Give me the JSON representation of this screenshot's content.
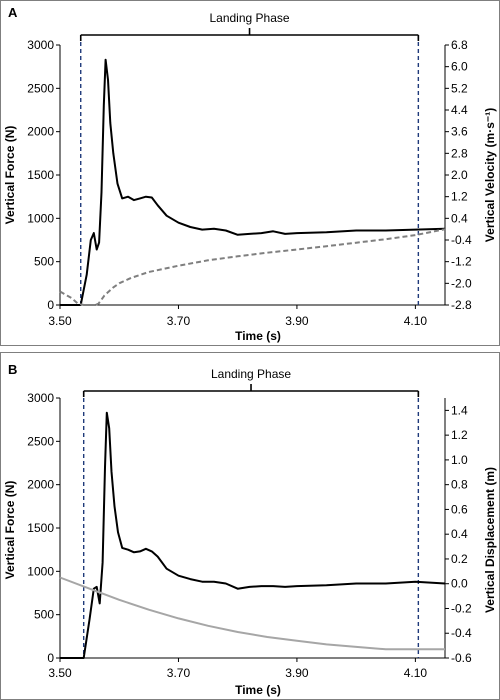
{
  "chart_data": [
    {
      "panel_label": "A",
      "type": "line",
      "phase_label": "Landing Phase",
      "phase_start": 3.535,
      "phase_end": 4.105,
      "xlabel": "Time (s)",
      "xlim": [
        3.5,
        4.15
      ],
      "xticks": [
        "3.50",
        "3.70",
        "3.90",
        "4.10"
      ],
      "y_left": {
        "label": "Vertical Force (N)",
        "lim": [
          0,
          3000
        ],
        "ticks": [
          "0",
          "500",
          "1000",
          "1500",
          "2000",
          "2500",
          "3000"
        ]
      },
      "y_right": {
        "label": "Vertical Velocity (m·s⁻¹)",
        "lim": [
          -2.8,
          6.8
        ],
        "ticks": [
          "6.8",
          "6.0",
          "5.2",
          "4.4",
          "3.6",
          "2.8",
          "2.0",
          "1.2",
          "0.4",
          "-0.4",
          "-1.2",
          "-2.0",
          "-2.8"
        ]
      },
      "series": [
        {
          "axis": "left",
          "style": "solid-black",
          "x": [
            3.5,
            3.535,
            3.545,
            3.552,
            3.557,
            3.562,
            3.566,
            3.57,
            3.574,
            3.577,
            3.581,
            3.585,
            3.59,
            3.597,
            3.605,
            3.615,
            3.625,
            3.635,
            3.645,
            3.655,
            3.665,
            3.68,
            3.7,
            3.72,
            3.74,
            3.76,
            3.78,
            3.8,
            3.82,
            3.84,
            3.86,
            3.88,
            3.9,
            3.95,
            4.0,
            4.05,
            4.1,
            4.15
          ],
          "y": [
            0,
            0,
            350,
            750,
            830,
            640,
            720,
            1300,
            2300,
            2830,
            2600,
            2100,
            1750,
            1400,
            1230,
            1250,
            1210,
            1230,
            1250,
            1240,
            1150,
            1030,
            950,
            900,
            870,
            880,
            860,
            810,
            820,
            830,
            850,
            820,
            830,
            840,
            860,
            860,
            870,
            880
          ]
        },
        {
          "axis": "right",
          "style": "dashed-gray",
          "x": [
            3.5,
            3.52,
            3.53,
            3.54,
            3.55,
            3.56,
            3.565,
            3.57,
            3.575,
            3.58,
            3.59,
            3.6,
            3.62,
            3.65,
            3.7,
            3.75,
            3.8,
            3.85,
            3.9,
            3.95,
            4.0,
            4.05,
            4.1,
            4.15
          ],
          "y": [
            -2.3,
            -2.55,
            -2.75,
            -2.8,
            -2.8,
            -2.8,
            -2.75,
            -2.6,
            -2.45,
            -2.35,
            -2.15,
            -2.0,
            -1.8,
            -1.58,
            -1.35,
            -1.15,
            -1.0,
            -0.87,
            -0.75,
            -0.63,
            -0.5,
            -0.37,
            -0.22,
            0.0
          ]
        }
      ]
    },
    {
      "panel_label": "B",
      "type": "line",
      "phase_label": "Landing Phase",
      "phase_start": 3.54,
      "phase_end": 4.105,
      "xlabel": "Time (s)",
      "xlim": [
        3.5,
        4.15
      ],
      "xticks": [
        "3.50",
        "3.70",
        "3.90",
        "4.10"
      ],
      "y_left": {
        "label": "Vertical Force (N)",
        "lim": [
          0,
          3000
        ],
        "ticks": [
          "0",
          "500",
          "1000",
          "1500",
          "2000",
          "2500",
          "3000"
        ]
      },
      "y_right": {
        "label": "Vertical Displacement (m)",
        "lim": [
          -0.6,
          1.5
        ],
        "ticks": [
          "1.4",
          "1.2",
          "1.0",
          "0.8",
          "0.6",
          "0.4",
          "0.2",
          "0.0",
          "-0.2",
          "-0.4",
          "-0.6"
        ]
      },
      "series": [
        {
          "axis": "left",
          "style": "solid-black",
          "x": [
            3.5,
            3.54,
            3.55,
            3.557,
            3.562,
            3.567,
            3.572,
            3.576,
            3.579,
            3.583,
            3.587,
            3.592,
            3.598,
            3.605,
            3.615,
            3.625,
            3.635,
            3.645,
            3.655,
            3.665,
            3.68,
            3.7,
            3.72,
            3.74,
            3.76,
            3.78,
            3.8,
            3.82,
            3.84,
            3.86,
            3.88,
            3.9,
            3.95,
            4.0,
            4.05,
            4.1,
            4.15
          ],
          "y": [
            0,
            0,
            450,
            800,
            820,
            630,
            1100,
            2200,
            2830,
            2650,
            2150,
            1750,
            1450,
            1270,
            1250,
            1220,
            1230,
            1260,
            1230,
            1170,
            1030,
            950,
            910,
            880,
            880,
            860,
            800,
            820,
            830,
            830,
            820,
            830,
            840,
            860,
            860,
            880,
            860
          ]
        },
        {
          "axis": "right",
          "style": "solid-lightgray",
          "x": [
            3.5,
            3.55,
            3.6,
            3.65,
            3.7,
            3.75,
            3.8,
            3.85,
            3.9,
            3.95,
            4.0,
            4.05,
            4.1,
            4.15
          ],
          "y": [
            0.05,
            -0.04,
            -0.13,
            -0.21,
            -0.28,
            -0.34,
            -0.39,
            -0.43,
            -0.46,
            -0.49,
            -0.51,
            -0.53,
            -0.53,
            -0.53
          ]
        }
      ]
    }
  ]
}
